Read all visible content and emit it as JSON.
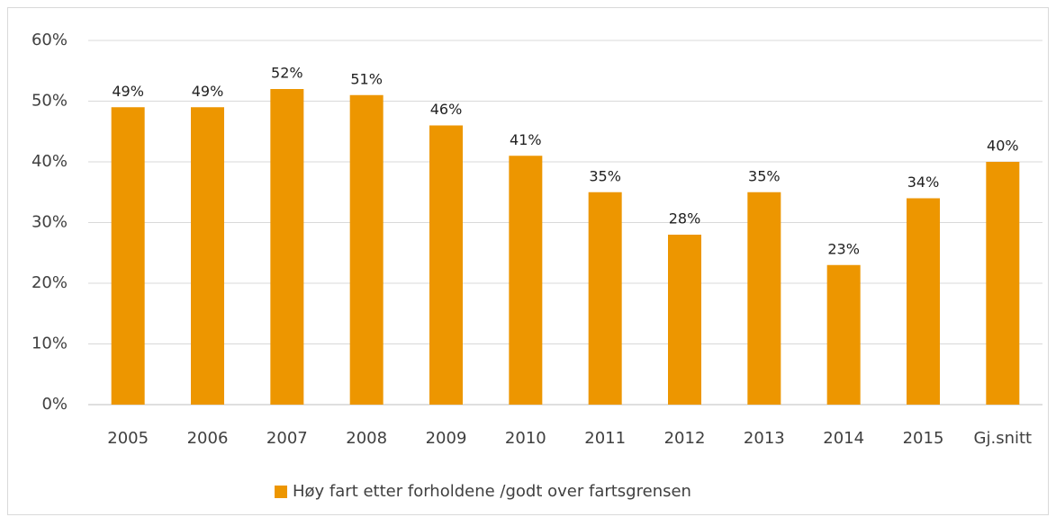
{
  "chart_data": {
    "type": "bar",
    "categories": [
      "2005",
      "2006",
      "2007",
      "2008",
      "2009",
      "2010",
      "2011",
      "2012",
      "2013",
      "2014",
      "2015",
      "Gj.snitt"
    ],
    "series": [
      {
        "name": "Høy fart etter forholdene /godt over fartsgrensen",
        "color": "#ed9600",
        "values": [
          49,
          49,
          52,
          51,
          46,
          41,
          35,
          28,
          35,
          23,
          34,
          40
        ],
        "value_labels": [
          "49%",
          "49%",
          "52%",
          "51%",
          "46%",
          "41%",
          "35%",
          "28%",
          "35%",
          "23%",
          "34%",
          "40%"
        ]
      }
    ],
    "ylim": [
      0,
      60
    ],
    "yticks": [
      {
        "value": 0,
        "label": "0%"
      },
      {
        "value": 10,
        "label": "10%"
      },
      {
        "value": 20,
        "label": "20%"
      },
      {
        "value": 30,
        "label": "30%"
      },
      {
        "value": 40,
        "label": "40%"
      },
      {
        "value": 50,
        "label": "50%"
      },
      {
        "value": 60,
        "label": "60%"
      }
    ],
    "grid": true,
    "legend": "bottom"
  }
}
